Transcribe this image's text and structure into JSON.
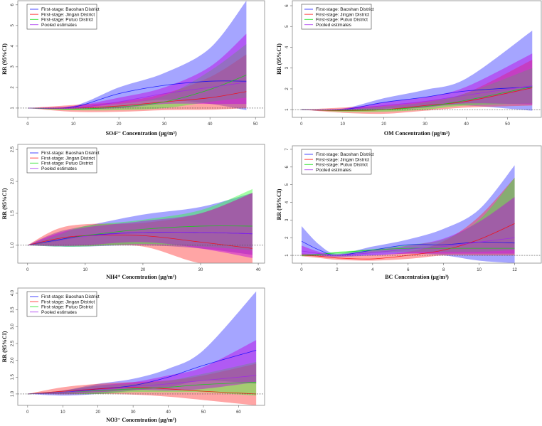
{
  "chart_data": [
    {
      "type": "area",
      "xlabel": "SO4²⁻ Concentration (μg/m³)",
      "ylabel": "RR (95%CI)",
      "xlim": [
        -2.2,
        52
      ],
      "ylim": [
        0.55,
        6.2
      ],
      "xticks": [
        "0",
        "10",
        "20",
        "30",
        "40",
        "50"
      ],
      "yticks": [
        "1",
        "2",
        "3",
        "4",
        "5",
        "6"
      ],
      "reference_line": 1,
      "legend_position": "top-left",
      "x": [
        0,
        10,
        20,
        30,
        40,
        48
      ],
      "series": [
        {
          "name": "First-stage: Baoshan District",
          "color": "#0000ff",
          "mean": [
            1,
            1.05,
            1.7,
            2.1,
            2.3,
            2.3
          ],
          "lower": [
            1,
            1.0,
            1.2,
            1.4,
            1.2,
            0.9
          ],
          "upper": [
            1,
            1.1,
            2.0,
            2.7,
            3.9,
            6.2
          ]
        },
        {
          "name": "First-stage: Jingan District",
          "color": "#ff0000",
          "mean": [
            1,
            1.0,
            1.1,
            1.3,
            1.5,
            1.8
          ],
          "lower": [
            1,
            0.82,
            0.82,
            0.9,
            0.92,
            1.0
          ],
          "upper": [
            1,
            1.15,
            1.3,
            1.7,
            2.5,
            3.6
          ]
        },
        {
          "name": "First-stage: Putuo District",
          "color": "#00dd00",
          "mean": [
            1,
            0.95,
            1.05,
            1.3,
            1.9,
            2.6
          ],
          "lower": [
            1,
            0.9,
            0.9,
            1.0,
            1.3,
            1.5
          ],
          "upper": [
            1,
            1.0,
            1.2,
            1.6,
            2.8,
            4.1
          ]
        },
        {
          "name": "Pooled estimates",
          "color": "#a020f0",
          "mean": [
            1,
            1.0,
            1.3,
            1.7,
            2.0,
            2.25
          ],
          "lower": [
            1,
            0.95,
            1.0,
            1.2,
            1.2,
            1.2
          ],
          "upper": [
            1,
            1.1,
            1.5,
            2.0,
            3.0,
            4.6
          ]
        }
      ]
    },
    {
      "type": "area",
      "xlabel": "OM Concentration (μg/m³)",
      "ylabel": "RR (95%CI)",
      "xlim": [
        -2.2,
        58.2
      ],
      "ylim": [
        0.63,
        6.24
      ],
      "xticks": [
        "0",
        "10",
        "20",
        "30",
        "40",
        "50"
      ],
      "yticks": [
        "1",
        "2",
        "3",
        "4",
        "5",
        "6"
      ],
      "reference_line": 1,
      "legend_position": "top-left",
      "x": [
        0,
        10,
        20,
        30,
        40,
        56
      ],
      "series": [
        {
          "name": "First-stage: Baoshan District",
          "color": "#0000ff",
          "mean": [
            1,
            1.0,
            1.35,
            1.6,
            1.9,
            2.1
          ],
          "lower": [
            1,
            0.95,
            1.05,
            1.15,
            1.2,
            0.95
          ],
          "upper": [
            1,
            1.05,
            1.55,
            1.95,
            2.5,
            4.8
          ]
        },
        {
          "name": "First-stage: Jingan District",
          "color": "#ff0000",
          "mean": [
            1,
            0.95,
            1.0,
            1.2,
            1.4,
            2.05
          ],
          "lower": [
            1,
            0.85,
            0.8,
            0.95,
            1.1,
            1.2
          ],
          "upper": [
            1,
            1.1,
            1.2,
            1.4,
            1.8,
            3.4
          ]
        },
        {
          "name": "First-stage: Putuo District",
          "color": "#00dd00",
          "mean": [
            1,
            0.97,
            1.0,
            1.15,
            1.45,
            2.1
          ],
          "lower": [
            1,
            0.9,
            0.9,
            1.0,
            1.2,
            1.3
          ],
          "upper": [
            1,
            1.02,
            1.15,
            1.35,
            1.8,
            3.0
          ]
        },
        {
          "name": "Pooled estimates",
          "color": "#a020f0",
          "mean": [
            1,
            1.0,
            1.2,
            1.4,
            1.7,
            2.15
          ],
          "lower": [
            1,
            0.95,
            1.0,
            1.1,
            1.3,
            1.25
          ],
          "upper": [
            1,
            1.05,
            1.35,
            1.6,
            2.1,
            3.7
          ]
        }
      ]
    },
    {
      "type": "area",
      "xlabel": "NH4⁺ Concentration (μg/m³)",
      "ylabel": "RR (95%CI)",
      "xlim": [
        -1.7,
        41.1
      ],
      "ylim": [
        0.72,
        2.58
      ],
      "xticks": [
        "0",
        "10",
        "20",
        "30",
        "40"
      ],
      "yticks": [
        "1.0",
        "1.5",
        "2.0",
        "2.5"
      ],
      "reference_line": 1,
      "legend_position": "top-left",
      "x": [
        0,
        5,
        10,
        20,
        30,
        39
      ],
      "series": [
        {
          "name": "First-stage: Baoshan District",
          "color": "#0000ff",
          "mean": [
            1,
            1.08,
            1.15,
            1.2,
            1.2,
            1.18
          ],
          "lower": [
            1,
            0.98,
            0.98,
            1.0,
            0.95,
            0.85
          ],
          "upper": [
            1,
            1.2,
            1.3,
            1.48,
            1.6,
            1.82
          ]
        },
        {
          "name": "First-stage: Jingan District",
          "color": "#ff0000",
          "mean": [
            1,
            1.1,
            1.15,
            1.15,
            1.05,
            0.95
          ],
          "lower": [
            1,
            0.99,
            0.99,
            0.98,
            0.72,
            0.72
          ],
          "upper": [
            1,
            1.25,
            1.33,
            1.35,
            1.5,
            1.82
          ]
        },
        {
          "name": "First-stage: Putuo District",
          "color": "#00dd00",
          "mean": [
            1,
            1.07,
            1.15,
            1.25,
            1.3,
            1.3
          ],
          "lower": [
            1,
            0.98,
            0.98,
            1.02,
            0.98,
            0.92
          ],
          "upper": [
            1,
            1.15,
            1.3,
            1.4,
            1.55,
            1.88
          ]
        },
        {
          "name": "Pooled estimates",
          "color": "#a020f0",
          "mean": [
            1,
            1.07,
            1.14,
            1.2,
            1.2,
            1.18
          ],
          "lower": [
            1,
            0.99,
            1.0,
            1.05,
            0.95,
            0.8
          ],
          "upper": [
            1,
            1.18,
            1.28,
            1.38,
            1.5,
            1.82
          ]
        }
      ]
    },
    {
      "type": "area",
      "xlabel": "BC Concentration (μg/m³)",
      "ylabel": "RR (95%CI)",
      "xlim": [
        -0.52,
        13.5
      ],
      "ylim": [
        0.56,
        7.2
      ],
      "xticks": [
        "0",
        "2",
        "4",
        "6",
        "8",
        "10",
        "12"
      ],
      "yticks": [
        "1",
        "2",
        "3",
        "4",
        "5",
        "6",
        "7"
      ],
      "reference_line": 1,
      "legend_position": "top-left",
      "x": [
        0,
        1,
        2,
        4,
        6,
        8,
        10,
        12
      ],
      "series": [
        {
          "name": "First-stage: Baoshan District",
          "color": "#0000ff",
          "mean": [
            1.8,
            1.3,
            1.0,
            1.3,
            1.6,
            1.6,
            1.75,
            1.7
          ],
          "lower": [
            1.0,
            0.95,
            0.9,
            1.0,
            1.1,
            1.0,
            0.7,
            0.56
          ],
          "upper": [
            2.65,
            1.6,
            1.1,
            1.5,
            1.9,
            2.5,
            3.6,
            6.1
          ]
        },
        {
          "name": "First-stage: Jingan District",
          "color": "#ff0000",
          "mean": [
            1.0,
            0.95,
            0.85,
            0.8,
            1.0,
            1.3,
            1.9,
            2.8
          ],
          "lower": [
            0.95,
            0.85,
            0.75,
            0.7,
            0.8,
            1.0,
            1.0,
            1.0
          ],
          "upper": [
            1.1,
            1.05,
            0.95,
            1.0,
            1.2,
            1.8,
            3.2,
            5.4
          ]
        },
        {
          "name": "First-stage: Putuo District",
          "color": "#00dd00",
          "mean": [
            1.0,
            1.05,
            1.15,
            1.3,
            1.4,
            1.4,
            1.4,
            1.4
          ],
          "lower": [
            0.95,
            1.0,
            1.05,
            1.15,
            1.2,
            1.2,
            1.2,
            1.3
          ],
          "upper": [
            1.05,
            1.1,
            1.2,
            1.35,
            1.6,
            1.9,
            3.0,
            5.4
          ]
        },
        {
          "name": "Pooled estimates",
          "color": "#a020f0",
          "mean": [
            1.25,
            1.1,
            1.0,
            1.15,
            1.35,
            1.5,
            1.75,
            2.0
          ],
          "lower": [
            1.05,
            1.0,
            0.95,
            1.0,
            1.1,
            1.1,
            1.1,
            1.1
          ],
          "upper": [
            1.55,
            1.2,
            1.05,
            1.3,
            1.55,
            1.95,
            2.9,
            4.3
          ]
        }
      ]
    },
    {
      "type": "area",
      "xlabel": "NO3⁻ Concentration (μg/m³)",
      "ylabel": "RR (95%CI)",
      "xlim": [
        -2.8,
        67.4
      ],
      "ylim": [
        0.66,
        4.15
      ],
      "xticks": [
        "0",
        "10",
        "20",
        "30",
        "40",
        "50",
        "60"
      ],
      "yticks": [
        "1.0",
        "1.5",
        "2.0",
        "2.5",
        "3.0",
        "3.5",
        "4.0"
      ],
      "reference_line": 1,
      "legend_position": "top-left",
      "x": [
        0,
        10,
        20,
        30,
        40,
        50,
        65
      ],
      "series": [
        {
          "name": "First-stage: Baoshan District",
          "color": "#0000ff",
          "mean": [
            1,
            1.05,
            1.15,
            1.25,
            1.5,
            1.85,
            2.3
          ],
          "lower": [
            1,
            0.95,
            1.0,
            1.1,
            1.2,
            1.4,
            1.3
          ],
          "upper": [
            1,
            1.1,
            1.3,
            1.45,
            1.75,
            2.3,
            4.05
          ]
        },
        {
          "name": "First-stage: Jingan District",
          "color": "#ff0000",
          "mean": [
            1,
            1.08,
            1.15,
            1.2,
            1.15,
            1.08,
            1.0
          ],
          "lower": [
            1,
            0.99,
            1.0,
            0.98,
            0.92,
            0.82,
            0.66
          ],
          "upper": [
            1,
            1.2,
            1.3,
            1.35,
            1.4,
            1.55,
            1.9
          ]
        },
        {
          "name": "First-stage: Putuo District",
          "color": "#00dd00",
          "mean": [
            1,
            1.05,
            1.1,
            1.15,
            1.2,
            1.28,
            1.35
          ],
          "lower": [
            1,
            1.0,
            1.0,
            1.05,
            1.05,
            1.05,
            0.95
          ],
          "upper": [
            1,
            1.1,
            1.25,
            1.3,
            1.4,
            1.6,
            1.95
          ]
        },
        {
          "name": "Pooled estimates",
          "color": "#a020f0",
          "mean": [
            1,
            1.05,
            1.12,
            1.22,
            1.3,
            1.4,
            1.55
          ],
          "lower": [
            1,
            1.0,
            1.05,
            1.12,
            1.1,
            1.15,
            1.35
          ],
          "upper": [
            1,
            1.1,
            1.25,
            1.35,
            1.55,
            1.8,
            2.6
          ]
        }
      ]
    }
  ]
}
